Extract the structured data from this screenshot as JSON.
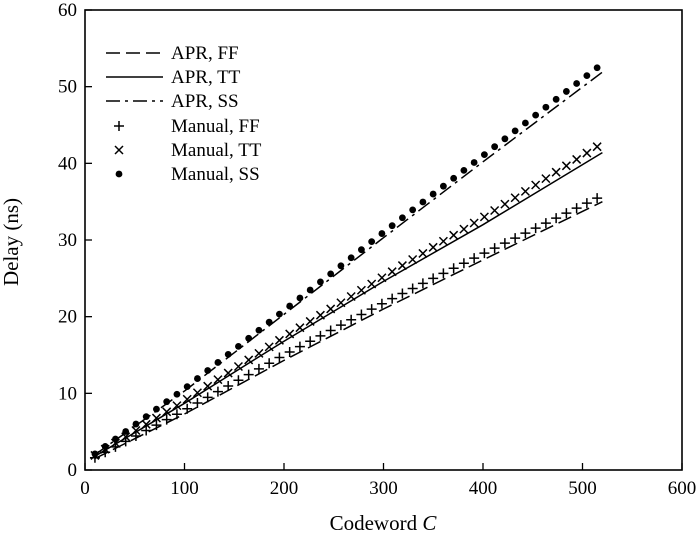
{
  "chart_data": {
    "type": "line",
    "title": "",
    "xlabel": "Codeword",
    "xlabel_var": "C",
    "ylabel": "Delay (ns)",
    "xlim": [
      0,
      600
    ],
    "ylim": [
      0,
      60
    ],
    "xticks": [
      0,
      100,
      200,
      300,
      400,
      500,
      600
    ],
    "yticks": [
      0,
      10,
      20,
      30,
      40,
      50,
      60
    ],
    "grid": false,
    "legend_position": "top-left",
    "series": [
      {
        "name": "APR, FF",
        "style": "dashed",
        "x": [
          10,
          100,
          200,
          300,
          400,
          520
        ],
        "y": [
          1.5,
          7.3,
          14.3,
          21.0,
          27.4,
          35.0
        ]
      },
      {
        "name": "APR, TT",
        "style": "solid",
        "x": [
          10,
          100,
          200,
          300,
          400,
          520
        ],
        "y": [
          1.8,
          8.7,
          16.8,
          24.6,
          32.0,
          41.4
        ]
      },
      {
        "name": "APR, SS",
        "style": "dashdot",
        "x": [
          10,
          100,
          200,
          300,
          400,
          520
        ],
        "y": [
          2.0,
          10.3,
          20.3,
          30.3,
          40.2,
          51.9
        ]
      },
      {
        "name": "Manual, FF",
        "marker": "plus",
        "x": [
          10,
          100,
          200,
          300,
          400,
          520
        ],
        "y": [
          1.6,
          7.8,
          15.0,
          21.8,
          28.2,
          35.8
        ]
      },
      {
        "name": "Manual, TT",
        "marker": "cross",
        "x": [
          10,
          100,
          200,
          300,
          400,
          520
        ],
        "y": [
          1.9,
          9.0,
          17.3,
          25.2,
          32.9,
          42.6
        ]
      },
      {
        "name": "Manual, SS",
        "marker": "dot",
        "x": [
          10,
          100,
          200,
          300,
          400,
          520
        ],
        "y": [
          2.1,
          10.6,
          20.8,
          31.0,
          41.0,
          53.0
        ]
      }
    ]
  }
}
